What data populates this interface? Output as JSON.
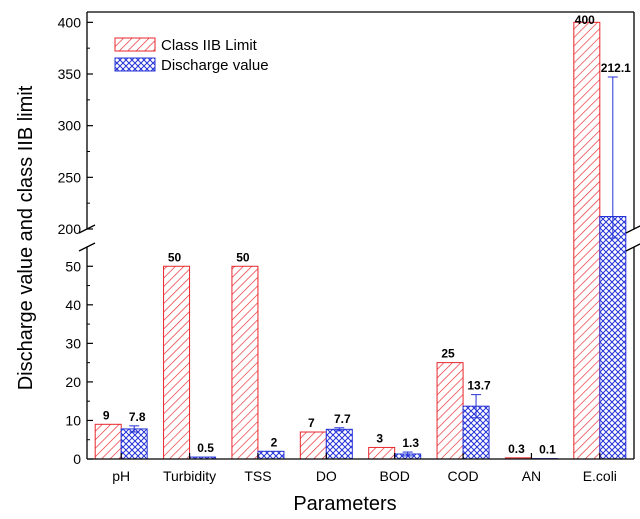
{
  "chart_data": {
    "type": "bar",
    "xlabel": "Parameters",
    "ylabel": "Discharge value and class IIB limit",
    "categories": [
      "pH",
      "Turbidity",
      "TSS",
      "DO",
      "BOD",
      "COD",
      "AN",
      "E.coli"
    ],
    "series": [
      {
        "name": "Class IIB Limit",
        "values": [
          9,
          50,
          50,
          7,
          3,
          25,
          0.3,
          400
        ],
        "labels": [
          "9",
          "50",
          "50",
          "7",
          "3",
          "25",
          "0.3",
          "400"
        ],
        "pattern": "diagonal-hatch",
        "color": "#e8262b"
      },
      {
        "name": "Discharge value",
        "values": [
          7.8,
          0.5,
          2,
          7.7,
          1.3,
          13.7,
          0.1,
          212.1
        ],
        "labels": [
          "7.8",
          "0.5",
          "2",
          "7.7",
          "1.3",
          "13.7",
          "0.1",
          "212.1"
        ],
        "errors": [
          0.8,
          0,
          0,
          0.4,
          0.5,
          3,
          0,
          135
        ],
        "pattern": "cross-hatch",
        "color": "#2432d6"
      }
    ],
    "y_axis": {
      "broken": true,
      "lower_segment": {
        "range": [
          0,
          55
        ],
        "ticks": [
          0,
          10,
          20,
          30,
          40,
          50
        ]
      },
      "upper_segment": {
        "range": [
          200,
          410
        ],
        "ticks": [
          200,
          250,
          300,
          350,
          400
        ]
      }
    },
    "legend_placement": "top-left",
    "grid": false
  }
}
